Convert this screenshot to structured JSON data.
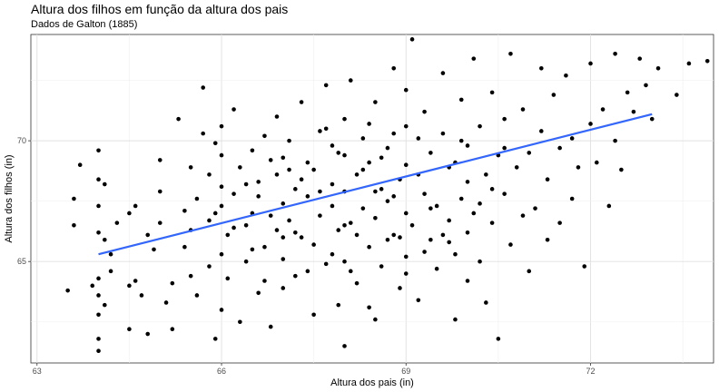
{
  "chart_data": {
    "type": "scatter",
    "title": "Altura dos filhos em função da altura dos pais",
    "subtitle": "Dados de Galton (1885)",
    "xlabel": "Altura dos pais (in)",
    "ylabel": "Altura dos filhos (in)",
    "xlim": [
      62.9,
      74.0
    ],
    "ylim": [
      60.8,
      74.4
    ],
    "x_ticks": [
      63,
      66,
      69,
      72
    ],
    "y_ticks": [
      65,
      70
    ],
    "grid": true,
    "point_color": "#000000",
    "line_color": "#3366ff",
    "regression_line": {
      "x": [
        64.0,
        73.0
      ],
      "y": [
        65.3,
        71.1
      ]
    },
    "points": [
      [
        63.5,
        63.8
      ],
      [
        63.6,
        67.6
      ],
      [
        63.6,
        66.5
      ],
      [
        63.7,
        69.0
      ],
      [
        63.9,
        64.0
      ],
      [
        64.0,
        61.3
      ],
      [
        64.0,
        61.8
      ],
      [
        64.0,
        62.8
      ],
      [
        64.0,
        63.6
      ],
      [
        64.0,
        64.3
      ],
      [
        64.0,
        66.2
      ],
      [
        64.0,
        67.3
      ],
      [
        64.0,
        68.4
      ],
      [
        64.0,
        69.6
      ],
      [
        64.1,
        63.2
      ],
      [
        64.1,
        65.9
      ],
      [
        64.1,
        68.2
      ],
      [
        64.2,
        64.6
      ],
      [
        64.2,
        65.3
      ],
      [
        64.3,
        66.6
      ],
      [
        64.5,
        67.0
      ],
      [
        64.5,
        64.0
      ],
      [
        64.5,
        62.2
      ],
      [
        64.6,
        67.3
      ],
      [
        64.6,
        64.2
      ],
      [
        64.7,
        63.6
      ],
      [
        64.8,
        62.0
      ],
      [
        64.8,
        66.1
      ],
      [
        64.9,
        65.5
      ],
      [
        65.0,
        66.6
      ],
      [
        65.0,
        69.2
      ],
      [
        65.0,
        67.9
      ],
      [
        65.1,
        63.3
      ],
      [
        65.2,
        64.1
      ],
      [
        65.2,
        62.2
      ],
      [
        65.3,
        70.9
      ],
      [
        65.4,
        65.6
      ],
      [
        65.4,
        67.1
      ],
      [
        65.5,
        68.9
      ],
      [
        65.5,
        64.4
      ],
      [
        65.5,
        66.3
      ],
      [
        65.6,
        67.6
      ],
      [
        65.6,
        63.6
      ],
      [
        65.7,
        70.3
      ],
      [
        65.7,
        72.2
      ],
      [
        65.8,
        66.7
      ],
      [
        65.8,
        64.8
      ],
      [
        65.8,
        68.6
      ],
      [
        65.9,
        69.9
      ],
      [
        65.9,
        61.8
      ],
      [
        66.0,
        63.0
      ],
      [
        66.0,
        65.3
      ],
      [
        66.0,
        67.3
      ],
      [
        66.0,
        68.1
      ],
      [
        66.0,
        69.4
      ],
      [
        66.0,
        70.6
      ],
      [
        66.1,
        66.1
      ],
      [
        66.1,
        64.3
      ],
      [
        66.2,
        67.8
      ],
      [
        66.2,
        71.3
      ],
      [
        66.3,
        62.5
      ],
      [
        66.3,
        68.9
      ],
      [
        66.4,
        66.5
      ],
      [
        66.4,
        65.0
      ],
      [
        66.5,
        69.6
      ],
      [
        66.5,
        67.0
      ],
      [
        66.6,
        63.7
      ],
      [
        66.6,
        68.3
      ],
      [
        66.7,
        70.2
      ],
      [
        66.7,
        65.6
      ],
      [
        66.8,
        66.9
      ],
      [
        66.8,
        62.3
      ],
      [
        66.9,
        71.0
      ],
      [
        66.9,
        68.6
      ],
      [
        67.0,
        67.4
      ],
      [
        67.0,
        65.1
      ],
      [
        67.0,
        69.3
      ],
      [
        67.0,
        63.9
      ],
      [
        67.1,
        66.7
      ],
      [
        67.1,
        70.0
      ],
      [
        67.2,
        68.0
      ],
      [
        67.2,
        64.4
      ],
      [
        67.3,
        66.0
      ],
      [
        67.3,
        71.6
      ],
      [
        67.4,
        67.7
      ],
      [
        67.4,
        69.1
      ],
      [
        67.5,
        62.8
      ],
      [
        67.5,
        65.7
      ],
      [
        67.5,
        68.8
      ],
      [
        67.6,
        70.4
      ],
      [
        67.6,
        66.9
      ],
      [
        67.7,
        64.9
      ],
      [
        67.7,
        72.3
      ],
      [
        67.8,
        67.3
      ],
      [
        67.8,
        69.8
      ],
      [
        67.8,
        68.2
      ],
      [
        67.9,
        63.2
      ],
      [
        67.9,
        66.3
      ],
      [
        68.0,
        61.5
      ],
      [
        68.0,
        65.0
      ],
      [
        68.0,
        67.9
      ],
      [
        68.0,
        69.4
      ],
      [
        68.0,
        70.9
      ],
      [
        68.1,
        66.6
      ],
      [
        68.1,
        72.5
      ],
      [
        68.2,
        68.6
      ],
      [
        68.2,
        64.1
      ],
      [
        68.3,
        70.1
      ],
      [
        68.3,
        67.2
      ],
      [
        68.4,
        65.6
      ],
      [
        68.4,
        69.1
      ],
      [
        68.5,
        62.6
      ],
      [
        68.5,
        66.8
      ],
      [
        68.5,
        71.6
      ],
      [
        68.6,
        68.0
      ],
      [
        68.6,
        64.8
      ],
      [
        68.7,
        69.7
      ],
      [
        68.7,
        67.5
      ],
      [
        68.8,
        66.1
      ],
      [
        68.8,
        73.0
      ],
      [
        68.9,
        68.4
      ],
      [
        68.9,
        63.9
      ],
      [
        69.0,
        65.2
      ],
      [
        69.0,
        67.0
      ],
      [
        69.0,
        69.0
      ],
      [
        69.0,
        70.6
      ],
      [
        69.0,
        72.1
      ],
      [
        69.1,
        74.2
      ],
      [
        69.1,
        66.5
      ],
      [
        69.2,
        68.6
      ],
      [
        69.2,
        63.4
      ],
      [
        69.3,
        67.8
      ],
      [
        69.3,
        71.2
      ],
      [
        69.4,
        65.9
      ],
      [
        69.4,
        69.5
      ],
      [
        69.5,
        64.7
      ],
      [
        69.5,
        67.3
      ],
      [
        69.6,
        70.3
      ],
      [
        69.6,
        72.8
      ],
      [
        69.7,
        66.7
      ],
      [
        69.7,
        68.9
      ],
      [
        69.8,
        62.6
      ],
      [
        69.8,
        65.3
      ],
      [
        69.9,
        67.6
      ],
      [
        69.9,
        71.7
      ],
      [
        70.0,
        64.2
      ],
      [
        70.0,
        66.2
      ],
      [
        70.0,
        68.3
      ],
      [
        70.0,
        69.8
      ],
      [
        70.1,
        73.4
      ],
      [
        70.1,
        67.0
      ],
      [
        70.2,
        65.0
      ],
      [
        70.2,
        70.6
      ],
      [
        70.3,
        68.6
      ],
      [
        70.3,
        63.3
      ],
      [
        70.4,
        66.6
      ],
      [
        70.4,
        72.0
      ],
      [
        70.5,
        69.4
      ],
      [
        70.5,
        61.8
      ],
      [
        70.6,
        67.8
      ],
      [
        70.6,
        70.9
      ],
      [
        70.7,
        65.7
      ],
      [
        70.7,
        73.6
      ],
      [
        70.8,
        68.9
      ],
      [
        70.9,
        66.9
      ],
      [
        70.9,
        71.3
      ],
      [
        71.0,
        69.5
      ],
      [
        71.0,
        64.6
      ],
      [
        71.1,
        67.2
      ],
      [
        71.2,
        70.4
      ],
      [
        71.2,
        73.0
      ],
      [
        71.3,
        68.4
      ],
      [
        71.3,
        65.9
      ],
      [
        71.4,
        71.9
      ],
      [
        71.5,
        69.7
      ],
      [
        71.5,
        66.6
      ],
      [
        71.6,
        72.7
      ],
      [
        71.7,
        70.1
      ],
      [
        71.7,
        67.6
      ],
      [
        71.8,
        68.9
      ],
      [
        71.9,
        64.8
      ],
      [
        72.0,
        70.7
      ],
      [
        72.0,
        73.2
      ],
      [
        72.1,
        69.1
      ],
      [
        72.2,
        71.3
      ],
      [
        72.3,
        67.3
      ],
      [
        72.4,
        73.6
      ],
      [
        72.4,
        70.0
      ],
      [
        72.5,
        68.8
      ],
      [
        72.6,
        72.0
      ],
      [
        72.7,
        71.2
      ],
      [
        72.8,
        73.4
      ],
      [
        72.9,
        72.3
      ],
      [
        73.0,
        70.9
      ],
      [
        73.1,
        73.0
      ],
      [
        73.4,
        71.9
      ],
      [
        73.6,
        73.2
      ],
      [
        73.9,
        73.3
      ],
      [
        67.9,
        69.5
      ],
      [
        68.4,
        70.7
      ],
      [
        66.6,
        67.7
      ],
      [
        67.2,
        66.2
      ],
      [
        68.9,
        66.0
      ],
      [
        69.4,
        67.2
      ],
      [
        68.2,
        66.1
      ],
      [
        67.6,
        67.9
      ],
      [
        66.9,
        66.3
      ],
      [
        68.5,
        67.9
      ],
      [
        69.8,
        69.1
      ],
      [
        67.3,
        68.4
      ],
      [
        68.7,
        65.9
      ],
      [
        66.4,
        68.2
      ],
      [
        67.8,
        65.3
      ],
      [
        69.2,
        70.1
      ],
      [
        68.0,
        66.5
      ],
      [
        68.8,
        67.7
      ],
      [
        70.2,
        67.4
      ],
      [
        67.0,
        66.0
      ],
      [
        66.2,
        66.4
      ],
      [
        68.6,
        69.3
      ],
      [
        69.6,
        66.1
      ],
      [
        67.4,
        64.6
      ],
      [
        68.1,
        64.6
      ],
      [
        69.0,
        64.5
      ],
      [
        66.7,
        64.2
      ],
      [
        70.4,
        68.0
      ],
      [
        68.3,
        68.8
      ],
      [
        69.9,
        70.0
      ],
      [
        66.5,
        65.5
      ],
      [
        67.7,
        70.5
      ],
      [
        68.8,
        70.3
      ],
      [
        65.9,
        67.0
      ],
      [
        70.6,
        69.7
      ],
      [
        69.3,
        65.4
      ],
      [
        67.1,
        68.8
      ],
      [
        68.4,
        63.1
      ],
      [
        66.8,
        69.2
      ],
      [
        69.7,
        65.8
      ]
    ]
  }
}
